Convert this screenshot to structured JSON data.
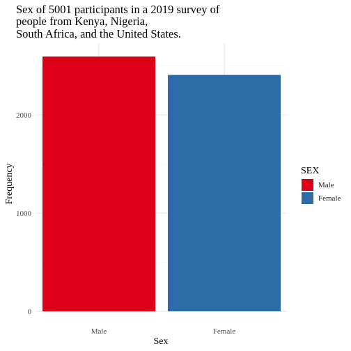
{
  "chart_data": {
    "type": "bar",
    "title_lines": [
      "Sex of 5001 participants in a 2019 survey of",
      "people from Kenya, Nigeria,",
      "South Africa, and the United States."
    ],
    "categories": [
      "Male",
      "Female"
    ],
    "values": [
      2594,
      2407
    ],
    "colors": [
      "#dc0019",
      "#2d6aa8"
    ],
    "xlabel": "Sex",
    "ylabel": "Frequency",
    "ylim": [
      0,
      2700
    ],
    "yticks": [
      0,
      1000,
      2000
    ],
    "ytick_labels": [
      "0",
      "1000",
      "2000"
    ],
    "grid": true,
    "legend": {
      "title": "SEX",
      "placement": "right",
      "entries": [
        {
          "label": "Male",
          "color": "#dc0019"
        },
        {
          "label": "Female",
          "color": "#2d6aa8"
        }
      ]
    }
  }
}
